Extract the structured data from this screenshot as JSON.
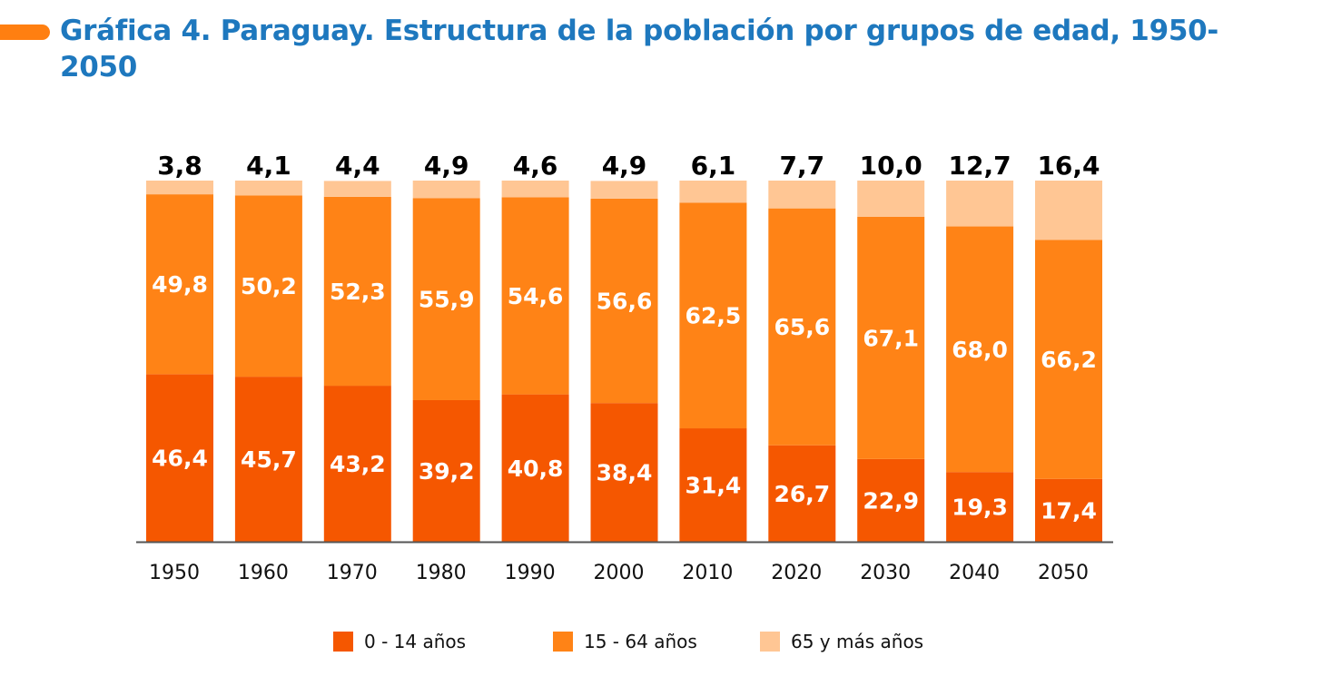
{
  "title": "Gráfica 4. Paraguay. Estructura de la población por grupos de edad, 1950-2050",
  "colors": {
    "title": "#1E78BE",
    "accent": "#FF7F11"
  },
  "chart_data": {
    "type": "bar",
    "stacked": true,
    "title": "Gráfica 4. Paraguay. Estructura de la población por grupos de edad, 1950-2050",
    "xlabel": "",
    "ylabel": "",
    "ylim": [
      0,
      100
    ],
    "grid": false,
    "legend_position": "bottom",
    "categories": [
      "1950",
      "1960",
      "1970",
      "1980",
      "1990",
      "2000",
      "2010",
      "2020",
      "2030",
      "2040",
      "2050"
    ],
    "series": [
      {
        "name": "0 - 14 años",
        "color": "#F55700",
        "values": [
          46.4,
          45.7,
          43.2,
          39.2,
          40.8,
          38.4,
          31.4,
          26.7,
          22.9,
          19.3,
          17.4
        ]
      },
      {
        "name": "15 - 64 años",
        "color": "#FF8316",
        "values": [
          49.8,
          50.2,
          52.3,
          55.9,
          54.6,
          56.6,
          62.5,
          65.6,
          67.1,
          68.0,
          66.2
        ]
      },
      {
        "name": "65 y más años",
        "color": "#FFC694",
        "values": [
          3.8,
          4.1,
          4.4,
          4.9,
          4.6,
          4.9,
          6.1,
          7.7,
          10.0,
          12.7,
          16.4
        ]
      }
    ],
    "value_labels": [
      [
        "46,4",
        "45,7",
        "43,2",
        "39,2",
        "40,8",
        "38,4",
        "31,4",
        "26,7",
        "22,9",
        "19,3",
        "17,4"
      ],
      [
        "49,8",
        "50,2",
        "52,3",
        "55,9",
        "54,6",
        "56,6",
        "62,5",
        "65,6",
        "67,1",
        "68,0",
        "66,2"
      ],
      [
        "3,8",
        "4,1",
        "4,4",
        "4,9",
        "4,6",
        "4,9",
        "6,1",
        "7,7",
        "10,0",
        "12,7",
        "16,4"
      ]
    ]
  }
}
